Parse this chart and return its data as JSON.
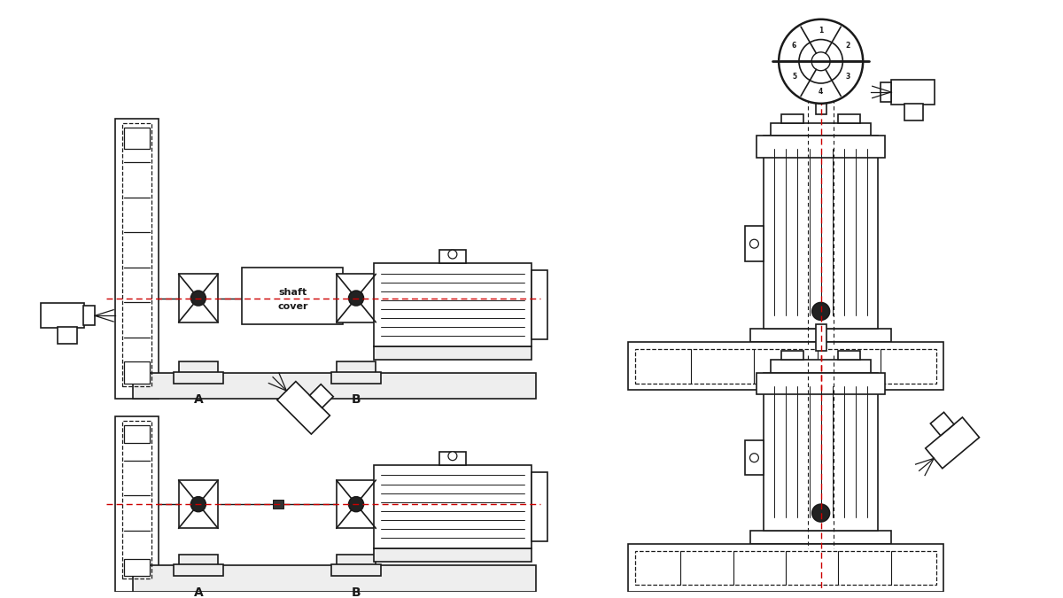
{
  "background_color": "#ffffff",
  "line_color": "#1a1a1a",
  "red_dashed_color": "#cc0000",
  "fig_width": 12.0,
  "fig_height": 6.75,
  "label_A_top": "A",
  "label_B_top": "B",
  "label_A_bot": "A",
  "label_B_bot": "B",
  "shaft_cover_text": [
    "shaft",
    "cover"
  ],
  "impeller_numbers": [
    "1",
    "2",
    "3",
    "4",
    "5",
    "6"
  ]
}
